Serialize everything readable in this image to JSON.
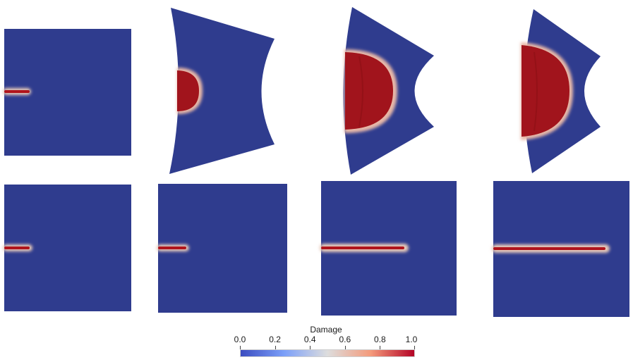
{
  "colorbar": {
    "title": "Damage",
    "ticks": [
      "0.0",
      "0.2",
      "0.4",
      "0.6",
      "0.8",
      "1.0"
    ],
    "colors": {
      "low": "#3b4cc0",
      "mid": "#dddddd",
      "high": "#b40426",
      "background": "#2f3c8e",
      "damage_core": "#a1141c"
    }
  },
  "panels": {
    "rows": 2,
    "columns": 4,
    "top_row": "deformed shape with damage zone",
    "bottom_row": "undeformed square with growing crack"
  }
}
